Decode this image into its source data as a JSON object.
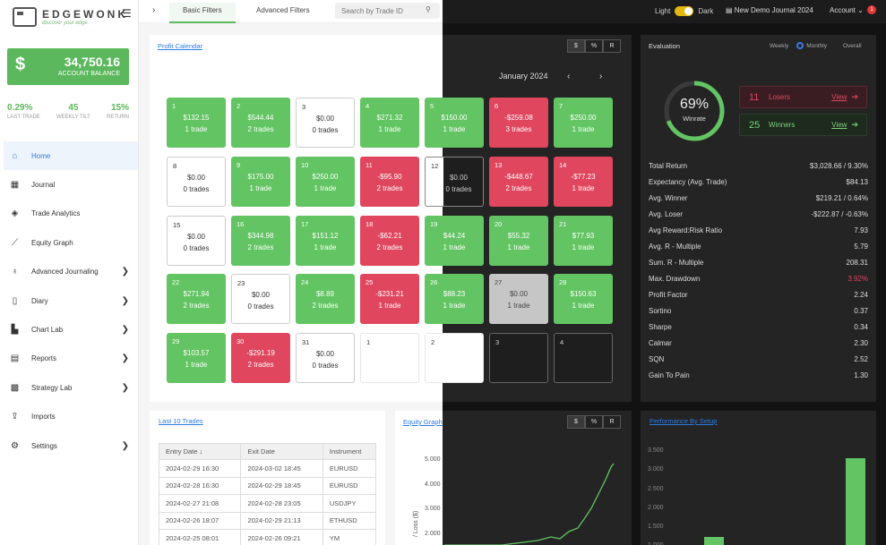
{
  "sidebar": {
    "logo_name": "EDGEWONK",
    "logo_tagline": "discover your edge",
    "balance": {
      "amount": "34,750.16",
      "label": "ACCOUNT BALANCE",
      "symbol": "$"
    },
    "stats": [
      {
        "value": "0.29%",
        "label": "LAST TRADE"
      },
      {
        "value": "45",
        "label": "WEEKLY TILT"
      },
      {
        "value": "15%",
        "label": "RETURN"
      }
    ],
    "nav": [
      {
        "label": "Home",
        "icon": "home-icon",
        "active": true,
        "chevron": false
      },
      {
        "label": "Journal",
        "icon": "table-icon",
        "chevron": false
      },
      {
        "label": "Trade Analytics",
        "icon": "layers-icon",
        "chevron": false
      },
      {
        "label": "Equity Graph",
        "icon": "line-chart-icon",
        "chevron": false
      },
      {
        "label": "Advanced Journaling",
        "icon": "lightbulb-icon",
        "chevron": true
      },
      {
        "label": "Diary",
        "icon": "book-icon",
        "chevron": true
      },
      {
        "label": "Chart Lab",
        "icon": "chart-icon",
        "chevron": true
      },
      {
        "label": "Reports",
        "icon": "clipboard-icon",
        "chevron": true
      },
      {
        "label": "Strategy Lab",
        "icon": "grid-icon",
        "chevron": true
      },
      {
        "label": "Imports",
        "icon": "upload-icon",
        "chevron": false
      },
      {
        "label": "Settings",
        "icon": "gear-icon",
        "chevron": true
      }
    ]
  },
  "topbar": {
    "tabs": [
      "Basic Filters",
      "Advanced Filters"
    ],
    "search_placeholder": "Search by Trade ID",
    "theme_light": "Light",
    "theme_dark": "Dark",
    "journal": "New Demo Journal 2024",
    "account": "Account",
    "notification_count": "1"
  },
  "calendar": {
    "title": "Profit Calendar",
    "month": "January 2024",
    "units": [
      "$",
      "%",
      "R"
    ],
    "days": [
      {
        "num": "1",
        "pnl": "$132.15",
        "trades": "1 trade",
        "state": "win"
      },
      {
        "num": "2",
        "pnl": "$544.44",
        "trades": "2 trades",
        "state": "win"
      },
      {
        "num": "3",
        "pnl": "$0.00",
        "trades": "0 trades",
        "state": "flat"
      },
      {
        "num": "4",
        "pnl": "$271.32",
        "trades": "1 trade",
        "state": "win"
      },
      {
        "num": "5",
        "pnl": "$150.00",
        "trades": "1 trade",
        "state": "win"
      },
      {
        "num": "6",
        "pnl": "-$259.08",
        "trades": "3 trades",
        "state": "loss"
      },
      {
        "num": "7",
        "pnl": "$250.00",
        "trades": "1 trade",
        "state": "win"
      },
      {
        "num": "8",
        "pnl": "$0.00",
        "trades": "0 trades",
        "state": "flat"
      },
      {
        "num": "9",
        "pnl": "$175.00",
        "trades": "1 trade",
        "state": "win"
      },
      {
        "num": "10",
        "pnl": "$250.00",
        "trades": "1 trade",
        "state": "win"
      },
      {
        "num": "11",
        "pnl": "-$95.90",
        "trades": "2 trades",
        "state": "loss"
      },
      {
        "num": "12",
        "pnl": "$0.00",
        "trades": "0 trades",
        "state": "split"
      },
      {
        "num": "13",
        "pnl": "-$448.67",
        "trades": "2 trades",
        "state": "loss"
      },
      {
        "num": "14",
        "pnl": "-$77.23",
        "trades": "1 trade",
        "state": "loss"
      },
      {
        "num": "15",
        "pnl": "$0.00",
        "trades": "0 trades",
        "state": "flat"
      },
      {
        "num": "16",
        "pnl": "$344.98",
        "trades": "2 trades",
        "state": "win"
      },
      {
        "num": "17",
        "pnl": "$151.12",
        "trades": "1 trade",
        "state": "win"
      },
      {
        "num": "18",
        "pnl": "-$62.21",
        "trades": "2 trades",
        "state": "loss"
      },
      {
        "num": "19",
        "pnl": "$44.24",
        "trades": "1 trade",
        "state": "win"
      },
      {
        "num": "20",
        "pnl": "$55.32",
        "trades": "1 trade",
        "state": "win"
      },
      {
        "num": "21",
        "pnl": "$77.93",
        "trades": "1 trade",
        "state": "win"
      },
      {
        "num": "22",
        "pnl": "$271.94",
        "trades": "2 trades",
        "state": "win"
      },
      {
        "num": "23",
        "pnl": "$0.00",
        "trades": "0 trades",
        "state": "flat"
      },
      {
        "num": "24",
        "pnl": "$8.89",
        "trades": "2 trades",
        "state": "win"
      },
      {
        "num": "25",
        "pnl": "-$231.21",
        "trades": "1 trade",
        "state": "loss"
      },
      {
        "num": "26",
        "pnl": "$88.23",
        "trades": "1 trade",
        "state": "win"
      },
      {
        "num": "27",
        "pnl": "$0.00",
        "trades": "1 trade",
        "state": "grey"
      },
      {
        "num": "28",
        "pnl": "$150.63",
        "trades": "1 trade",
        "state": "win"
      },
      {
        "num": "29",
        "pnl": "$103.57",
        "trades": "1 trade",
        "state": "win"
      },
      {
        "num": "30",
        "pnl": "-$291.19",
        "trades": "2 trades",
        "state": "loss"
      },
      {
        "num": "31",
        "pnl": "$0.00",
        "trades": "0 trades",
        "state": "flat"
      },
      {
        "num": "1",
        "pnl": "",
        "trades": "",
        "state": "empty"
      },
      {
        "num": "2",
        "pnl": "",
        "trades": "",
        "state": "empty"
      },
      {
        "num": "3",
        "pnl": "",
        "trades": "",
        "state": "empty"
      },
      {
        "num": "4",
        "pnl": "",
        "trades": "",
        "state": "empty"
      }
    ]
  },
  "evaluation": {
    "title": "Evaluation",
    "periods": [
      "Weekly",
      "Monthly",
      "Overall"
    ],
    "winrate": {
      "value": "69%",
      "label": "Winrate",
      "fraction": 0.69
    },
    "losers": {
      "count": "11",
      "label": "Losers",
      "link": "View"
    },
    "winners": {
      "count": "25",
      "label": "Winners",
      "link": "View"
    },
    "metrics": [
      {
        "label": "Total Return",
        "value": "$3,028.66 / 9.30%"
      },
      {
        "label": "Expectancy (Avg. Trade)",
        "value": "$84.13"
      },
      {
        "label": "Avg. Winner",
        "value": "$219.21 / 0.64%"
      },
      {
        "label": "Avg. Loser",
        "value": "-$222.87 / -0.63%"
      },
      {
        "label": "Avg Reward:Risk Ratio",
        "value": "7.93"
      },
      {
        "label": "Avg. R - Multiple",
        "value": "5.79"
      },
      {
        "label": "Sum. R - Multiple",
        "value": "208.31"
      },
      {
        "label": "Max. Drawdown",
        "value": "3.92%",
        "red": true
      },
      {
        "label": "Profit Factor",
        "value": "2.24"
      },
      {
        "label": "Sortino",
        "value": "0.37"
      },
      {
        "label": "Sharpe",
        "value": "0.34"
      },
      {
        "label": "Calmar",
        "value": "2.30"
      },
      {
        "label": "SQN",
        "value": "2.52"
      },
      {
        "label": "Gain To Pain",
        "value": "1.30"
      }
    ]
  },
  "trades": {
    "title": "Last 10 Trades",
    "headers": [
      "Entry Date",
      "Exit Date",
      "Instrument"
    ],
    "sort_icon": "arrow-down-icon",
    "rows": [
      [
        "2024-02-29 16:30",
        "2024-03-02 18:45",
        "EURUSD"
      ],
      [
        "2024-02-28 16:30",
        "2024-02-29 18:45",
        "EURUSD"
      ],
      [
        "2024-02-27 21:08",
        "2024-02-28 23:05",
        "USDJPY"
      ],
      [
        "2024-02-26 18:07",
        "2024-02-29 21:13",
        "ETHUSD"
      ],
      [
        "2024-02-25 08:01",
        "2024-02-26 09:21",
        "YM"
      ]
    ]
  },
  "equity": {
    "title": "Equity Graph",
    "units": [
      "$",
      "%",
      "R"
    ],
    "ylabel": "/ Loss ($)",
    "ticks": [
      "5.000",
      "4.000",
      "3.000",
      "2.000"
    ]
  },
  "performance": {
    "title": "Performance By Setup",
    "ticks": [
      "3.500",
      "3.000",
      "2.500",
      "2.000",
      "1.500",
      "1.000"
    ]
  },
  "colors": {
    "win": "#62c462",
    "loss": "#e0465e",
    "accent": "#2a7be4",
    "brand": "#5cb85c"
  }
}
